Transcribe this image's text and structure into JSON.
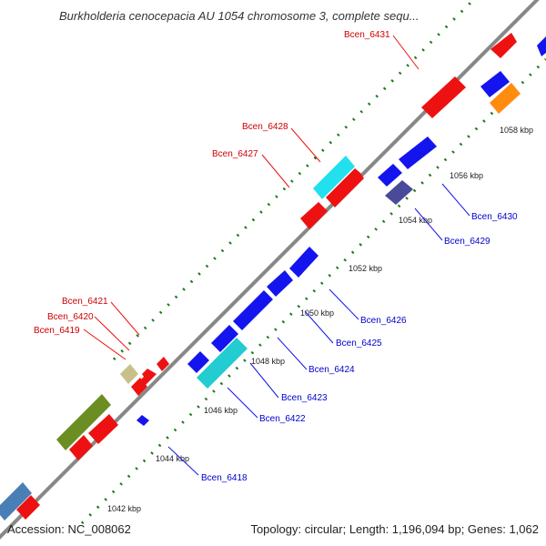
{
  "title": "Burkholderia cenocepacia AU 1054 chromosome 3, complete sequ...",
  "footer": {
    "accession": "Accession: NC_008062",
    "summary": "Topology: circular; Length: 1,196,094 bp; Genes: 1,062"
  },
  "colors": {
    "forward_label": "#cc0000",
    "reverse_label": "#0000cc",
    "backbone": "#888888",
    "tick_marks": "#1a7a1a"
  },
  "ticks": [
    "1042 kbp",
    "1044 kbp",
    "1046 kbp",
    "1048 kbp",
    "1050 kbp",
    "1052 kbp",
    "1054 kbp",
    "1056 kbp",
    "1058 kbp"
  ],
  "gene_labels": {
    "bcen_6418": "Bcen_6418",
    "bcen_6419": "Bcen_6419",
    "bcen_6420": "Bcen_6420",
    "bcen_6421": "Bcen_6421",
    "bcen_6422": "Bcen_6422",
    "bcen_6423": "Bcen_6423",
    "bcen_6424": "Bcen_6424",
    "bcen_6425": "Bcen_6425",
    "bcen_6426": "Bcen_6426",
    "bcen_6427": "Bcen_6427",
    "bcen_6428": "Bcen_6428",
    "bcen_6429": "Bcen_6429",
    "bcen_6430": "Bcen_6430",
    "bcen_6431": "Bcen_6431"
  }
}
